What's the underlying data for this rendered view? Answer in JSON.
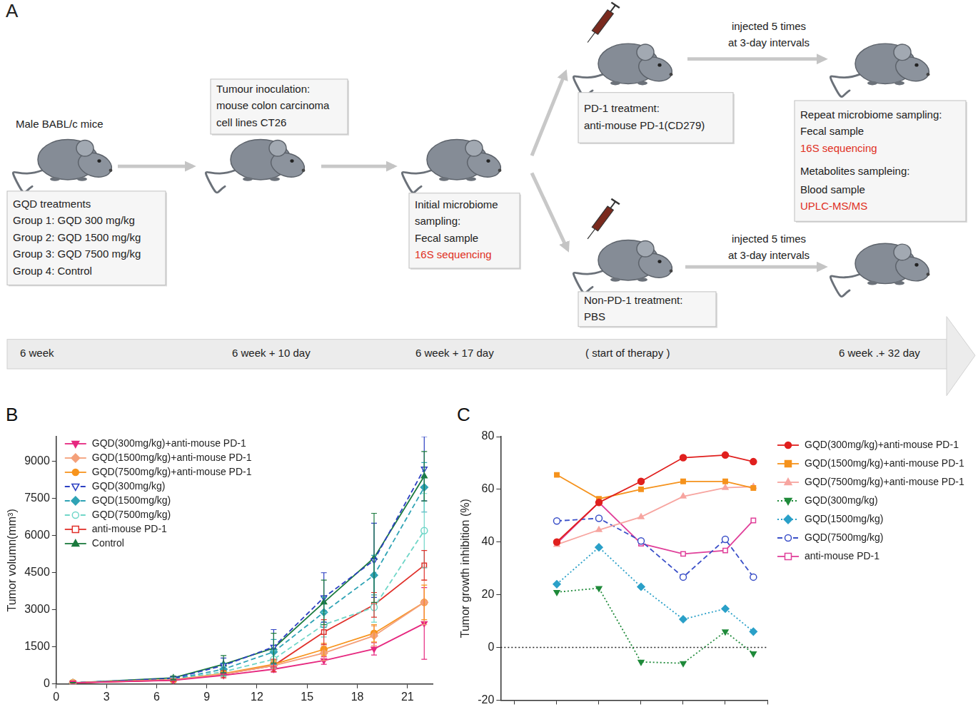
{
  "diagram": {
    "panel": "A",
    "subject": "Male BABL/c mice",
    "boxes": [
      {
        "lines": [
          {
            "text": "GQD treatments"
          },
          {
            "text": "Group 1: GQD 300 mg/kg"
          },
          {
            "text": "Group 2: GQD 1500 mg/kg"
          },
          {
            "text": "Group 3: GQD 7500 mg/kg"
          },
          {
            "text": "Group 4: Control"
          }
        ]
      },
      {
        "lines": [
          {
            "text": "Tumour inoculation:"
          },
          {
            "text": "mouse colon carcinoma"
          },
          {
            "text": "cell lines CT26"
          }
        ]
      },
      {
        "lines": [
          {
            "text": "Initial microbiome"
          },
          {
            "text": "sampling:"
          },
          {
            "text": "Fecal sample"
          },
          {
            "text": "16S sequencing",
            "color": "#e0301e"
          }
        ]
      },
      {
        "lines": [
          {
            "text": "PD-1 treatment:"
          },
          {
            "text": "anti-mouse PD-1(CD279)"
          }
        ]
      },
      {
        "lines": [
          {
            "text": "Repeat microbiome sampling:"
          },
          {
            "text": "Fecal sample"
          },
          {
            "text": "16S sequencing",
            "color": "#e0301e"
          },
          {
            "text": "Metabolites sampleing:"
          },
          {
            "text": "Blood sample"
          },
          {
            "text": "UPLC-MS/MS",
            "color": "#e0301e"
          }
        ]
      },
      {
        "lines": [
          {
            "text": "Non-PD-1 treatment:"
          },
          {
            "text": "PBS"
          }
        ]
      }
    ],
    "arrow_labels": [
      [
        "injected 5 times",
        "at 3-day intervals"
      ],
      [
        "injected 5 times",
        "at 3-day intervals"
      ]
    ],
    "timeline": [
      "6 week",
      "6 week + 10 day",
      "6 week + 17 day",
      "( start of therapy )",
      "6 week .+ 32 day"
    ]
  },
  "chart_data": [
    {
      "panel": "B",
      "type": "line",
      "ylabel": "Tumor volumn(mm³)",
      "x": [
        1,
        7,
        10,
        13,
        16,
        19,
        22
      ],
      "xlim": [
        0,
        22.5
      ],
      "xticks": [
        0,
        3,
        6,
        9,
        12,
        15,
        18,
        21
      ],
      "ylim": [
        0,
        10000
      ],
      "yticks": [
        0,
        1500,
        3000,
        4500,
        6000,
        7500,
        9000
      ],
      "grid": false,
      "legend": "top-left",
      "series": [
        {
          "name": "GQD(300mg/kg)+anti-mouse PD-1",
          "color": "#e6287f",
          "marker": "triangle_down",
          "line_style": "solid",
          "values": [
            50,
            150,
            350,
            600,
            950,
            1420,
            2450
          ],
          "errors": [
            10,
            30,
            60,
            120,
            150,
            250,
            1450
          ]
        },
        {
          "name": "GQD(1500mg/kg)+anti-mouse PD-1",
          "color": "#f4a07a",
          "marker": "diamond",
          "line_style": "solid",
          "values": [
            50,
            180,
            400,
            750,
            1250,
            1950,
            3300
          ],
          "errors": [
            10,
            30,
            80,
            150,
            300,
            400,
            900
          ]
        },
        {
          "name": "GQD(7500mg/kg)+anti-mouse PD-1",
          "color": "#f7941d",
          "marker": "circle",
          "line_style": "solid",
          "values": [
            50,
            170,
            420,
            800,
            1400,
            2050,
            3300
          ],
          "errors": [
            10,
            30,
            80,
            150,
            250,
            350,
            700
          ]
        },
        {
          "name": "GQD(300mg/kg)",
          "color": "#2b3fc2",
          "marker": "open_triangle_down",
          "line_style": "dashed",
          "values": [
            50,
            230,
            750,
            1500,
            3500,
            5000,
            8700
          ],
          "errors": [
            10,
            80,
            300,
            700,
            1000,
            1500,
            1300
          ]
        },
        {
          "name": "GQD(1500mg/kg)",
          "color": "#2fa3b5",
          "marker": "diamond",
          "line_style": "dashed",
          "values": [
            50,
            200,
            600,
            1300,
            2900,
            4400,
            7950
          ],
          "errors": [
            10,
            60,
            250,
            500,
            600,
            800,
            1000
          ]
        },
        {
          "name": "GQD(7500mg/kg)",
          "color": "#6fd6c8",
          "marker": "open_circle",
          "line_style": "dashed",
          "values": [
            50,
            180,
            500,
            1000,
            2400,
            3100,
            6200
          ],
          "errors": [
            10,
            50,
            200,
            350,
            500,
            600,
            1500
          ]
        },
        {
          "name": "anti-mouse PD-1",
          "color": "#e0302a",
          "marker": "open_square",
          "line_style": "solid",
          "values": [
            50,
            160,
            400,
            750,
            2100,
            3200,
            4800
          ],
          "errors": [
            10,
            40,
            150,
            250,
            500,
            500,
            600
          ]
        },
        {
          "name": "Control",
          "color": "#1b7a3e",
          "marker": "triangle",
          "line_style": "solid",
          "values": [
            50,
            250,
            800,
            1450,
            3300,
            5100,
            8400
          ],
          "errors": [
            10,
            70,
            350,
            600,
            900,
            1800,
            1000
          ]
        }
      ]
    },
    {
      "panel": "C",
      "type": "line",
      "ylabel": "Tumor growth inhibition (%)",
      "x": [
        7,
        10,
        13,
        16,
        19,
        21
      ],
      "xlim": [
        3,
        22
      ],
      "xticks": [
        4,
        7,
        10,
        13,
        16,
        19,
        22
      ],
      "ylim": [
        -20,
        80
      ],
      "yticks": [
        -20,
        0,
        20,
        40,
        60,
        80
      ],
      "grid": false,
      "tick_labels": "y",
      "legend": "right",
      "reference_lines": [
        {
          "y": 0,
          "line_style": "dotted"
        }
      ],
      "series": [
        {
          "name": "GQD(300mg/kg)+anti-mouse PD-1",
          "color": "#e0201e",
          "marker": "circle",
          "line_style": "solid",
          "values": [
            40,
            55,
            63,
            72,
            73,
            70.5
          ]
        },
        {
          "name": "GQD(1500mg/kg)+anti-mouse PD-1",
          "color": "#f5921c",
          "marker": "square",
          "line_style": "solid",
          "values": [
            65.5,
            56.4,
            60,
            63,
            63,
            60.5
          ]
        },
        {
          "name": "GQD(7500mg/kg)+anti-mouse PD-1",
          "color": "#f7a5a0",
          "marker": "triangle",
          "line_style": "solid",
          "values": [
            39,
            44.6,
            49.5,
            57.3,
            60.6,
            61
          ]
        },
        {
          "name": "GQD(300mg/kg)",
          "color": "#1f8a3a",
          "marker": "triangle_down",
          "line_style": "dotted",
          "values": [
            21,
            22.5,
            -5.5,
            -6,
            6,
            -2.3
          ]
        },
        {
          "name": "GQD(1500mg/kg)",
          "color": "#2aa0c8",
          "marker": "diamond",
          "line_style": "dotted",
          "values": [
            24,
            38,
            23,
            10.7,
            14.7,
            6
          ]
        },
        {
          "name": "GQD(7500mg/kg)",
          "color": "#3a4fc8",
          "marker": "open_circle",
          "line_style": "dashed",
          "values": [
            48,
            49,
            40.4,
            26.7,
            41,
            26.7
          ]
        },
        {
          "name": "anti-mouse PD-1",
          "color": "#e0409a",
          "marker": "open_square",
          "line_style": "solid",
          "values": [
            39.4,
            55,
            39.4,
            35.5,
            36.8,
            48.2
          ]
        }
      ]
    }
  ]
}
